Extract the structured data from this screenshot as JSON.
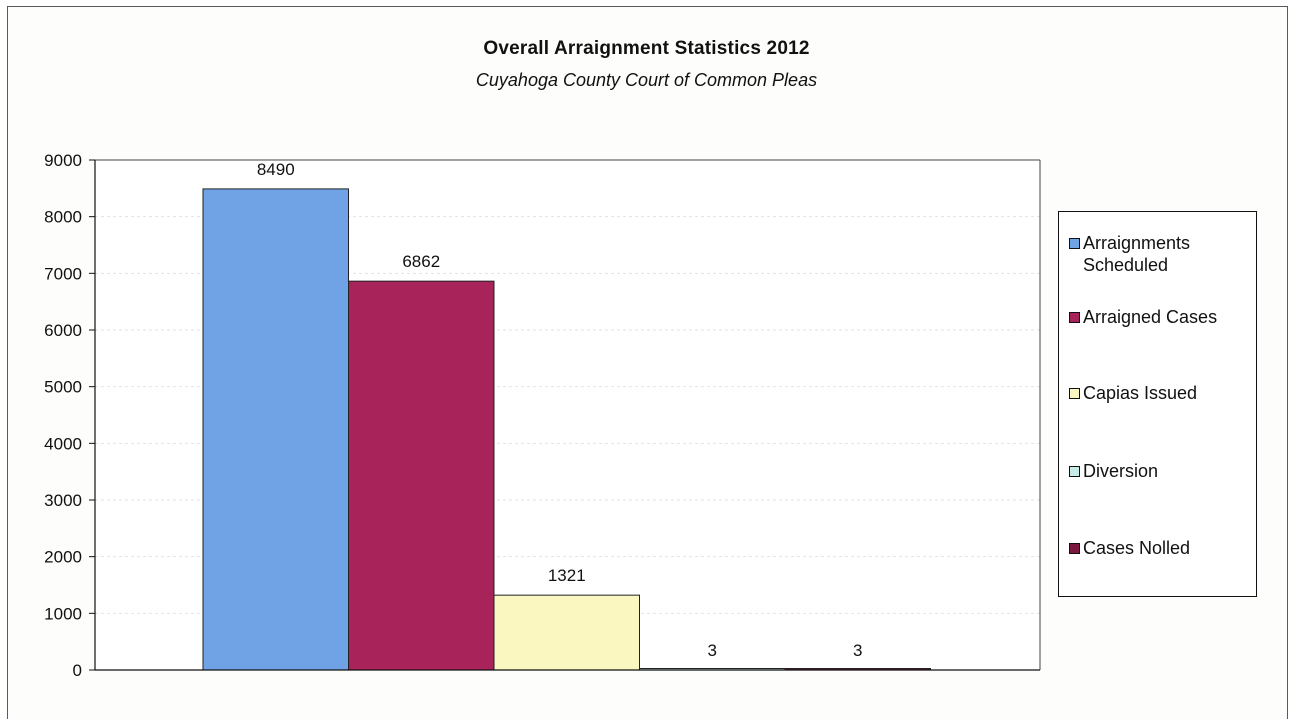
{
  "chart_data": {
    "type": "bar",
    "title": "Overall Arraignment Statistics  2012",
    "subtitle": "Cuyahoga County Court of Common Pleas",
    "xlabel": "",
    "ylabel": "",
    "ylim": [
      0,
      9000
    ],
    "y_ticks": [
      "0",
      "1000",
      "2000",
      "3000",
      "4000",
      "5000",
      "6000",
      "7000",
      "8000",
      "9000"
    ],
    "grid": true,
    "legend_position": "right",
    "series": [
      {
        "name": "Arraignments Scheduled",
        "value": 8490,
        "label": "8490",
        "color": "#6fa3e6"
      },
      {
        "name": "Arraigned Cases",
        "value": 6862,
        "label": "6862",
        "color": "#a8235a"
      },
      {
        "name": "Capias Issued",
        "value": 1321,
        "label": "1321",
        "color": "#fbf7c1"
      },
      {
        "name": "Diversion",
        "value": 3,
        "label": "3",
        "color": "#c7ece8"
      },
      {
        "name": "Cases Nolled",
        "value": 3,
        "label": "3",
        "color": "#7a1840"
      }
    ]
  },
  "legend": {
    "items": [
      {
        "lines": [
          "Arraignments",
          "Scheduled"
        ]
      },
      {
        "lines": [
          "Arraigned Cases"
        ]
      },
      {
        "lines": [
          "Capias Issued"
        ]
      },
      {
        "lines": [
          "Diversion"
        ]
      },
      {
        "lines": [
          "Cases Nolled"
        ]
      }
    ]
  }
}
